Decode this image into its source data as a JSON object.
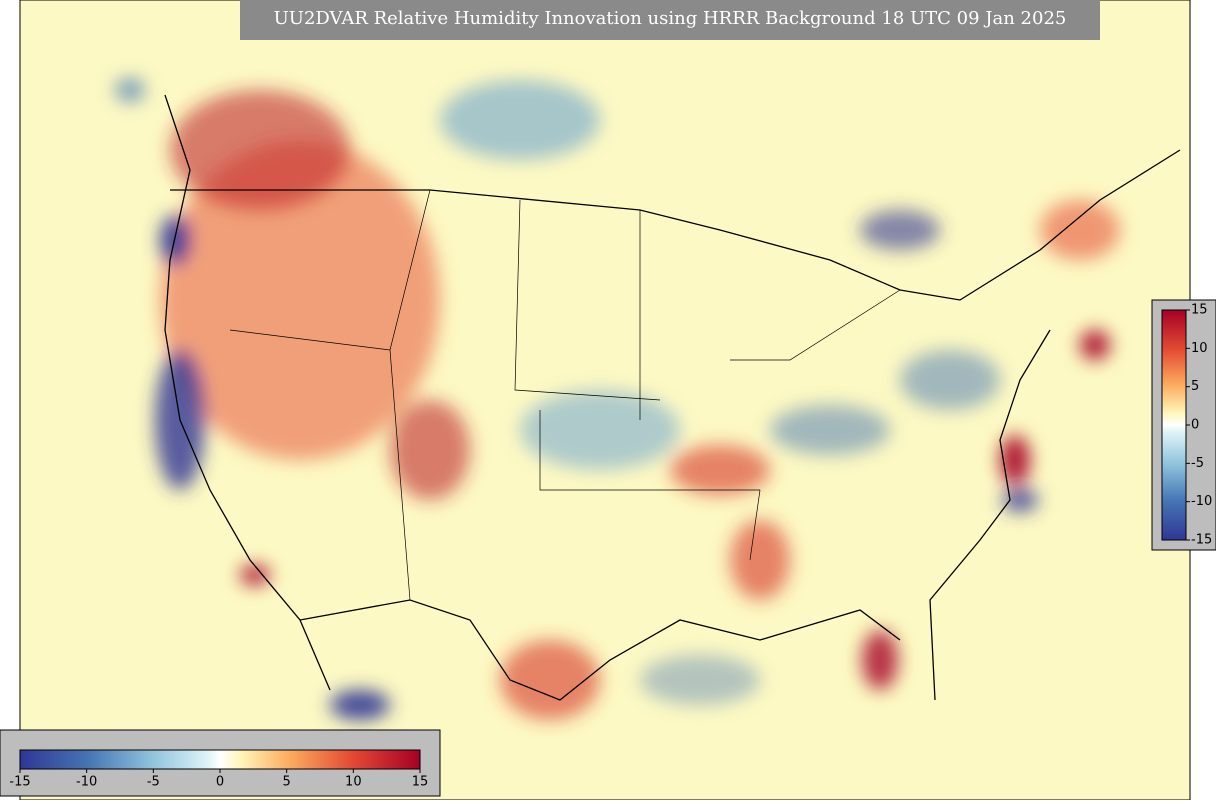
{
  "title": "UU2DVAR Relative Humidity Innovation using HRRR Background 18 UTC 09 Jan 2025",
  "colorbar_right": {
    "range": [
      -15,
      15
    ],
    "ticks": [
      15,
      10,
      5,
      0,
      -5,
      -10,
      -15
    ]
  },
  "colorbar_bottom": {
    "range": [
      -15,
      15
    ],
    "ticks": [
      -15,
      -10,
      -5,
      0,
      5,
      10,
      15
    ]
  }
}
